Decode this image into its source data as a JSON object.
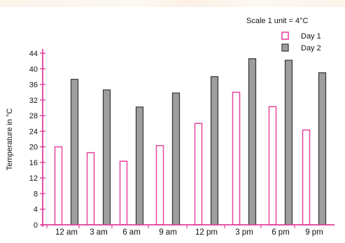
{
  "chart_data": {
    "type": "bar",
    "title": "",
    "note": "Scale 1 unit = 4°C",
    "xlabel": "",
    "ylabel": "Temperature in °C",
    "ylim": [
      0,
      44
    ],
    "yticks": [
      "0",
      "4",
      "8",
      "12",
      "16",
      "20",
      "24",
      "28",
      "32",
      "36",
      "40",
      "44"
    ],
    "categories": [
      "12 am",
      "3 am",
      "6 am",
      "9 am",
      "12 pm",
      "3 pm",
      "6 pm",
      "9 pm"
    ],
    "series": [
      {
        "name": "Day 1",
        "values": [
          20,
          18.5,
          16.3,
          20.3,
          26,
          34,
          30.3,
          24.3
        ]
      },
      {
        "name": "Day 2",
        "values": [
          37.3,
          34.6,
          30.2,
          33.8,
          38,
          42.6,
          42.2,
          39
        ]
      }
    ],
    "legend": "top-right",
    "grid": false
  },
  "colors": {
    "axis": "#e0409a",
    "day1_stroke": "#e8449e",
    "day1_fill": "#ffffff",
    "day2_fill": "#9e9e9e",
    "day2_stroke": "#333333"
  }
}
